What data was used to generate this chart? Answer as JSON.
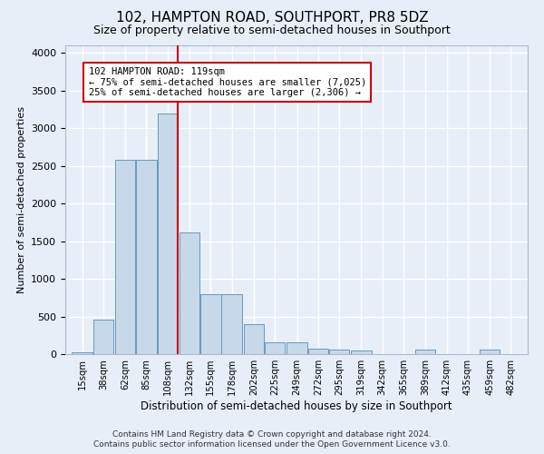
{
  "title": "102, HAMPTON ROAD, SOUTHPORT, PR8 5DZ",
  "subtitle": "Size of property relative to semi-detached houses in Southport",
  "xlabel": "Distribution of semi-detached houses by size in Southport",
  "ylabel": "Number of semi-detached properties",
  "footnote1": "Contains HM Land Registry data © Crown copyright and database right 2024.",
  "footnote2": "Contains public sector information licensed under the Open Government Licence v3.0.",
  "categories": [
    "15sqm",
    "38sqm",
    "62sqm",
    "85sqm",
    "108sqm",
    "132sqm",
    "155sqm",
    "178sqm",
    "202sqm",
    "225sqm",
    "249sqm",
    "272sqm",
    "295sqm",
    "319sqm",
    "342sqm",
    "365sqm",
    "389sqm",
    "412sqm",
    "435sqm",
    "459sqm",
    "482sqm"
  ],
  "values": [
    30,
    460,
    2580,
    2580,
    3200,
    1620,
    800,
    800,
    400,
    155,
    155,
    70,
    65,
    50,
    0,
    0,
    55,
    0,
    0,
    55,
    0
  ],
  "bar_color": "#c8d8eb",
  "bar_edge_color": "#6699bb",
  "property_line_x": 119,
  "property_line_color": "#cc0000",
  "annotation_text": "102 HAMPTON ROAD: 119sqm\n← 75% of semi-detached houses are smaller (7,025)\n25% of semi-detached houses are larger (2,306) →",
  "annotation_box_color": "white",
  "annotation_box_edge": "#cc0000",
  "ylim": [
    0,
    4100
  ],
  "background_color": "#e8eef8",
  "grid_color": "white"
}
